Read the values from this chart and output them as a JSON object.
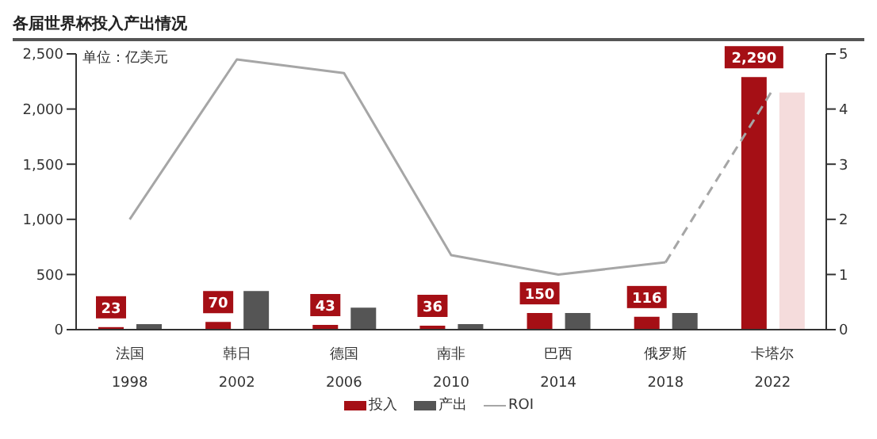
{
  "chart_data": {
    "type": "bar",
    "title": "各届世界杯投入产出情况",
    "annotations": [
      "单位：亿美元"
    ],
    "categories": [
      "法国\n1998",
      "韩日\n2002",
      "德国\n2006",
      "南非\n2010",
      "巴西\n2014",
      "俄罗斯\n2018",
      "卡塔尔\n2022"
    ],
    "series": [
      {
        "name": "投入",
        "color": "#a50f15",
        "values": [
          23,
          70,
          43,
          36,
          150,
          116,
          2290
        ],
        "value_labels": [
          "23",
          "70",
          "43",
          "36",
          "150",
          "116",
          "2,290"
        ]
      },
      {
        "name": "产出",
        "color": "#555555",
        "colors": [
          "#555555",
          "#555555",
          "#555555",
          "#555555",
          "#555555",
          "#555555",
          "#f5dcdc"
        ],
        "values": [
          50,
          350,
          200,
          50,
          150,
          150,
          2150
        ]
      },
      {
        "name": "ROI",
        "type": "line",
        "axis": "y2",
        "color": "#a6a6a6",
        "line_style": "solid",
        "values": [
          2.0,
          4.9,
          4.65,
          1.35,
          1.0,
          1.22,
          null
        ]
      },
      {
        "type": "line",
        "axis": "y2",
        "color": "#a6a6a6",
        "line_style": "dashed",
        "values": [
          null,
          null,
          null,
          null,
          null,
          1.22,
          4.35
        ]
      }
    ],
    "ylim": [
      0,
      2500
    ],
    "yticks": [
      0,
      {
        "value": 500,
        "label": "500"
      },
      {
        "value": 1000,
        "label": "1,000"
      },
      {
        "value": 1500,
        "label": "1,500"
      },
      {
        "value": 2000,
        "label": "2,000"
      },
      {
        "value": 2500,
        "label": "2,500"
      }
    ],
    "y2lim": [
      0,
      5
    ],
    "y2ticks": [
      0,
      1,
      2,
      3,
      4,
      5
    ],
    "legend": "bottom",
    "marker": "none"
  }
}
